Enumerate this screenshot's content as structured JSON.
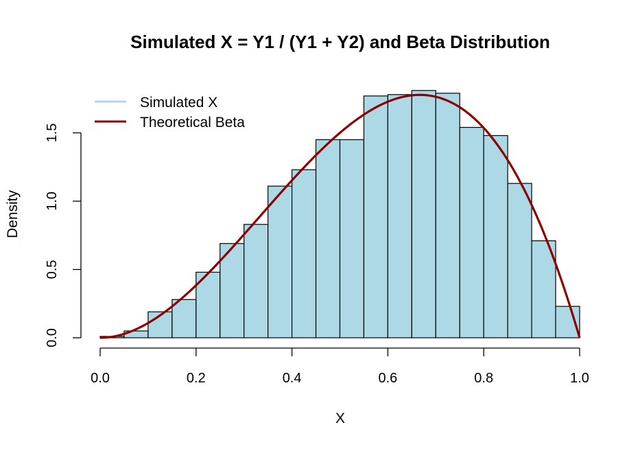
{
  "chart_data": {
    "type": "bar",
    "title": "Simulated X = Y1 / (Y1 + Y2) and Beta Distribution",
    "xlabel": "X",
    "ylabel": "Density",
    "xlim": [
      0.0,
      1.0
    ],
    "ylim": [
      0.0,
      1.85
    ],
    "x_ticks": [
      "0.0",
      "0.2",
      "0.4",
      "0.6",
      "0.8",
      "1.0"
    ],
    "y_ticks": [
      "0.0",
      "0.5",
      "1.0",
      "1.5"
    ],
    "grid": false,
    "legend_position": "top-left",
    "bin_width": 0.05,
    "bins": [
      {
        "x0": 0.0,
        "x1": 0.05,
        "density": 0.01
      },
      {
        "x0": 0.05,
        "x1": 0.1,
        "density": 0.05
      },
      {
        "x0": 0.1,
        "x1": 0.15,
        "density": 0.19
      },
      {
        "x0": 0.15,
        "x1": 0.2,
        "density": 0.28
      },
      {
        "x0": 0.2,
        "x1": 0.25,
        "density": 0.48
      },
      {
        "x0": 0.25,
        "x1": 0.3,
        "density": 0.69
      },
      {
        "x0": 0.3,
        "x1": 0.35,
        "density": 0.83
      },
      {
        "x0": 0.35,
        "x1": 0.4,
        "density": 1.11
      },
      {
        "x0": 0.4,
        "x1": 0.45,
        "density": 1.23
      },
      {
        "x0": 0.45,
        "x1": 0.5,
        "density": 1.45
      },
      {
        "x0": 0.5,
        "x1": 0.55,
        "density": 1.45
      },
      {
        "x0": 0.55,
        "x1": 0.6,
        "density": 1.77
      },
      {
        "x0": 0.6,
        "x1": 0.65,
        "density": 1.78
      },
      {
        "x0": 0.65,
        "x1": 0.7,
        "density": 1.81
      },
      {
        "x0": 0.7,
        "x1": 0.75,
        "density": 1.79
      },
      {
        "x0": 0.75,
        "x1": 0.8,
        "density": 1.54
      },
      {
        "x0": 0.8,
        "x1": 0.85,
        "density": 1.48
      },
      {
        "x0": 0.85,
        "x1": 0.9,
        "density": 1.13
      },
      {
        "x0": 0.9,
        "x1": 0.95,
        "density": 0.71
      },
      {
        "x0": 0.95,
        "x1": 1.0,
        "density": 0.23
      }
    ],
    "series": [
      {
        "name": "Simulated X",
        "kind": "histogram",
        "color": "#ADD8E6"
      },
      {
        "name": "Theoretical Beta",
        "kind": "curve",
        "color": "#8B0000",
        "shape1": 3,
        "shape2": 2
      }
    ]
  }
}
